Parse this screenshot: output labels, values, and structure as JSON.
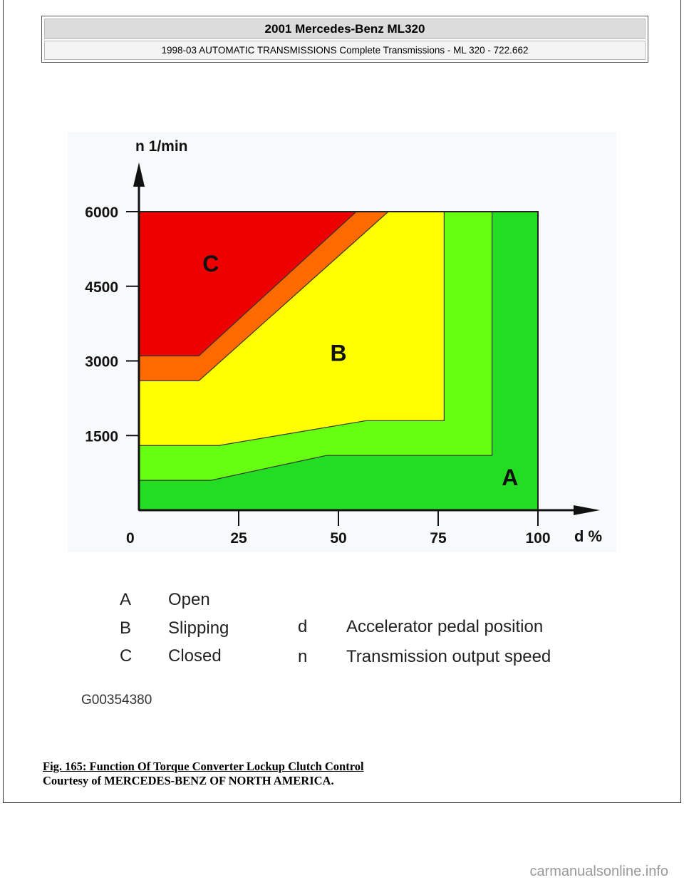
{
  "header": {
    "title": "2001 Mercedes-Benz ML320",
    "subtitle": "1998-03 AUTOMATIC TRANSMISSIONS Complete Transmissions - ML 320 - 722.662"
  },
  "chart_data": {
    "type": "area",
    "title": "",
    "xlabel": "d %",
    "ylabel": "n 1/min",
    "xlim": [
      0,
      100
    ],
    "ylim": [
      0,
      6000
    ],
    "xticks": [
      0,
      25,
      50,
      75,
      100
    ],
    "yticks": [
      1500,
      3000,
      4500,
      6000
    ],
    "regions": [
      {
        "name": "A-outer",
        "label": "A",
        "color": "#22dd22",
        "points": [
          [
            0,
            0
          ],
          [
            100,
            0
          ],
          [
            100,
            6000
          ],
          [
            0,
            6000
          ]
        ]
      },
      {
        "name": "A-transition",
        "label": "",
        "color": "#66ff11",
        "points": [
          [
            0,
            600
          ],
          [
            18,
            600
          ],
          [
            47,
            1100
          ],
          [
            88.5,
            1100
          ],
          [
            88.5,
            6000
          ],
          [
            0,
            6000
          ]
        ]
      },
      {
        "name": "B",
        "label": "B",
        "color": "#ffff00",
        "points": [
          [
            0,
            1300
          ],
          [
            20,
            1300
          ],
          [
            57,
            1800
          ],
          [
            76.5,
            1800
          ],
          [
            76.5,
            6000
          ],
          [
            0,
            6000
          ]
        ]
      },
      {
        "name": "B-C-transition",
        "label": "",
        "color": "#ff6a00",
        "points": [
          [
            0,
            2600
          ],
          [
            15,
            2600
          ],
          [
            62.5,
            6000
          ],
          [
            0,
            6000
          ]
        ]
      },
      {
        "name": "C",
        "label": "C",
        "color": "#ee0000",
        "points": [
          [
            0,
            3100
          ],
          [
            15,
            3100
          ],
          [
            54.5,
            6000
          ],
          [
            0,
            6000
          ]
        ]
      }
    ],
    "region_labels": [
      {
        "label": "C",
        "d": 18,
        "n": 4800
      },
      {
        "label": "B",
        "d": 50,
        "n": 3000
      },
      {
        "label": "A",
        "d": 93,
        "n": 500
      }
    ]
  },
  "legend": {
    "items": [
      {
        "key": "A",
        "text": "Open"
      },
      {
        "key": "B",
        "text": "Slipping"
      },
      {
        "key": "C",
        "text": "Closed"
      }
    ],
    "axes": [
      {
        "key": "d",
        "text": "Accelerator pedal position"
      },
      {
        "key": "n",
        "text": "Transmission output speed"
      }
    ]
  },
  "image_id": "G00354380",
  "caption": "Fig. 165: Function Of Torque Converter Lockup Clutch Control",
  "courtesy": "Courtesy of MERCEDES-BENZ OF NORTH AMERICA.",
  "watermark": "carmanualsonline.info"
}
